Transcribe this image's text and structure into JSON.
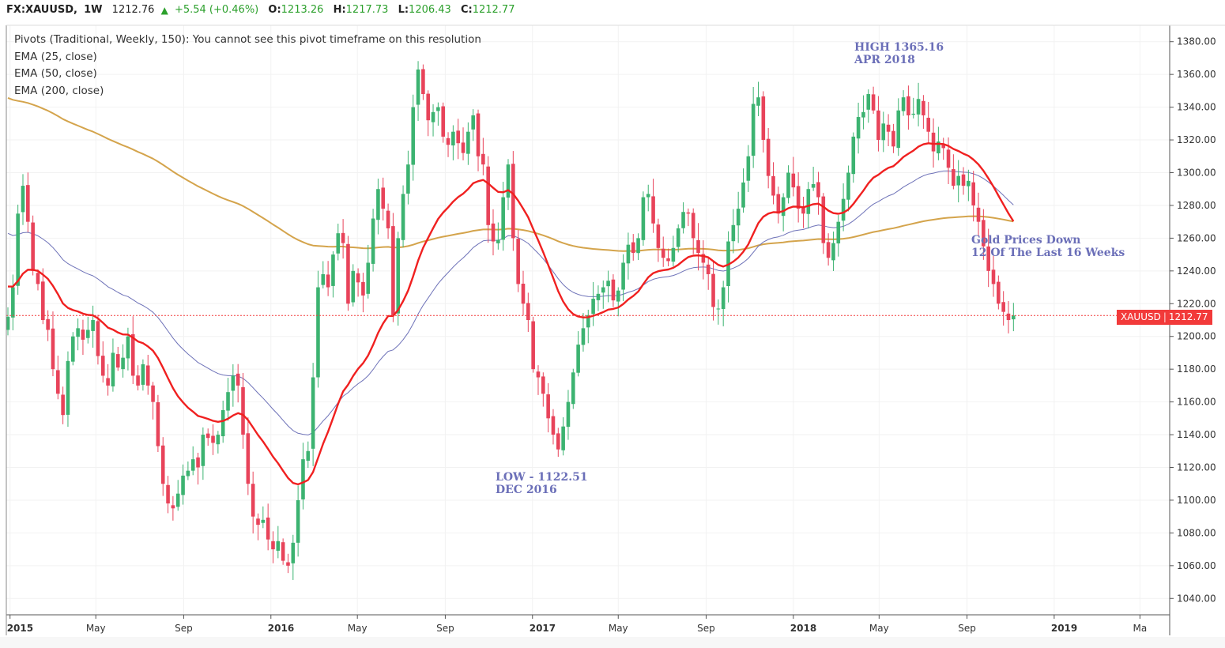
{
  "header": {
    "symbol": "FX:XAUUSD,",
    "resolution": "1W",
    "last": "1212.76",
    "change": "+5.54 (+0.46%)",
    "o_label": "O:",
    "o_value": "1213.26",
    "h_label": "H:",
    "h_value": "1217.73",
    "l_label": "L:",
    "l_value": "1206.43",
    "c_label": "C:",
    "c_value": "1212.77"
  },
  "legend": [
    "Pivots (Traditional, Weekly, 150): You cannot see this pivot timeframe on this resolution",
    "EMA (25, close)",
    "EMA (50, close)",
    "EMA (200, close)"
  ],
  "annotations": {
    "high_line1": "HIGH 1365.16",
    "high_line2": "APR 2018",
    "low_line1": "LOW - 1122.51",
    "low_line2": "DEC 2016",
    "note_line1": "Gold Prices Down",
    "note_line2": "12 Of The Last 16 Weeks"
  },
  "price_tag": {
    "symbol": "XAUUSD",
    "value": "1212.77"
  },
  "colors": {
    "up": "#3cb371",
    "down": "#e8435a",
    "ema25": "#f02020",
    "ema50": "#6e72b8",
    "ema200": "#d4a44c",
    "last_price": "#f23a3a",
    "annotation": "#6b6fb8"
  },
  "chart_data": {
    "type": "candlestick",
    "symbol": "XAUUSD",
    "interval": "1W",
    "ylim": [
      1030,
      1390
    ],
    "y_ticks": [
      "1380.00",
      "1360.00",
      "1340.00",
      "1320.00",
      "1300.00",
      "1280.00",
      "1260.00",
      "1240.00",
      "1220.00",
      "1200.00",
      "1180.00",
      "1160.00",
      "1140.00",
      "1120.00",
      "1100.00",
      "1080.00",
      "1060.00",
      "1040.00"
    ],
    "x_start": "2014-12-29",
    "x_ticks": [
      {
        "label": "2015",
        "date": "2015-01-01",
        "bold": true
      },
      {
        "label": "May",
        "date": "2015-05-01",
        "bold": false
      },
      {
        "label": "Sep",
        "date": "2015-09-01",
        "bold": false
      },
      {
        "label": "2016",
        "date": "2016-01-01",
        "bold": true
      },
      {
        "label": "May",
        "date": "2016-05-01",
        "bold": false
      },
      {
        "label": "Sep",
        "date": "2016-09-01",
        "bold": false
      },
      {
        "label": "2017",
        "date": "2017-01-01",
        "bold": true
      },
      {
        "label": "May",
        "date": "2017-05-01",
        "bold": false
      },
      {
        "label": "Sep",
        "date": "2017-09-01",
        "bold": false
      },
      {
        "label": "2018",
        "date": "2018-01-01",
        "bold": true
      },
      {
        "label": "May",
        "date": "2018-05-01",
        "bold": false
      },
      {
        "label": "Sep",
        "date": "2018-09-01",
        "bold": false
      },
      {
        "label": "2019",
        "date": "2019-01-01",
        "bold": true
      },
      {
        "label": "Ma",
        "date": "2019-05-01",
        "bold": false
      }
    ],
    "weekly_close": [
      1212,
      1230,
      1275,
      1292,
      1270,
      1240,
      1232,
      1210,
      1204,
      1180,
      1165,
      1152,
      1185,
      1200,
      1205,
      1198,
      1204,
      1210,
      1188,
      1176,
      1170,
      1190,
      1181,
      1187,
      1200,
      1176,
      1170,
      1183,
      1170,
      1160,
      1133,
      1110,
      1098,
      1095,
      1104,
      1115,
      1118,
      1125,
      1120,
      1140,
      1138,
      1135,
      1140,
      1155,
      1166,
      1176,
      1170,
      1140,
      1110,
      1090,
      1085,
      1088,
      1076,
      1070,
      1075,
      1063,
      1060,
      1074,
      1100,
      1125,
      1130,
      1175,
      1230,
      1238,
      1230,
      1250,
      1263,
      1257,
      1220,
      1240,
      1233,
      1225,
      1245,
      1272,
      1290,
      1278,
      1266,
      1213,
      1260,
      1287,
      1305,
      1340,
      1363,
      1348,
      1332,
      1337,
      1340,
      1322,
      1317,
      1325,
      1318,
      1312,
      1325,
      1335,
      1310,
      1305,
      1268,
      1258,
      1259,
      1285,
      1305,
      1260,
      1232,
      1220,
      1210,
      1180,
      1175,
      1165,
      1150,
      1140,
      1131,
      1145,
      1160,
      1178,
      1195,
      1205,
      1213,
      1223,
      1226,
      1230,
      1234,
      1222,
      1228,
      1245,
      1256,
      1251,
      1260,
      1285,
      1287,
      1269,
      1254,
      1248,
      1246,
      1254,
      1266,
      1276,
      1275,
      1260,
      1251,
      1245,
      1238,
      1218,
      1217,
      1230,
      1258,
      1268,
      1278,
      1294,
      1310,
      1342,
      1346,
      1320,
      1298,
      1286,
      1275,
      1285,
      1300,
      1291,
      1278,
      1275,
      1290,
      1293,
      1285,
      1257,
      1248,
      1257,
      1270,
      1284,
      1300,
      1322,
      1334,
      1337,
      1348,
      1338,
      1320,
      1330,
      1325,
      1316,
      1338,
      1346,
      1335,
      1336,
      1345,
      1335,
      1325,
      1313,
      1319,
      1315,
      1303,
      1292,
      1298,
      1292,
      1295,
      1280,
      1270,
      1255,
      1240,
      1232,
      1220,
      1215,
      1210,
      1212.77
    ],
    "ema_200_start": 1347,
    "series": [
      {
        "name": "EMA (25, close)",
        "period": 25
      },
      {
        "name": "EMA (50, close)",
        "period": 50
      },
      {
        "name": "EMA (200, close)",
        "period": 200
      }
    ],
    "last_price": 1212.77
  }
}
